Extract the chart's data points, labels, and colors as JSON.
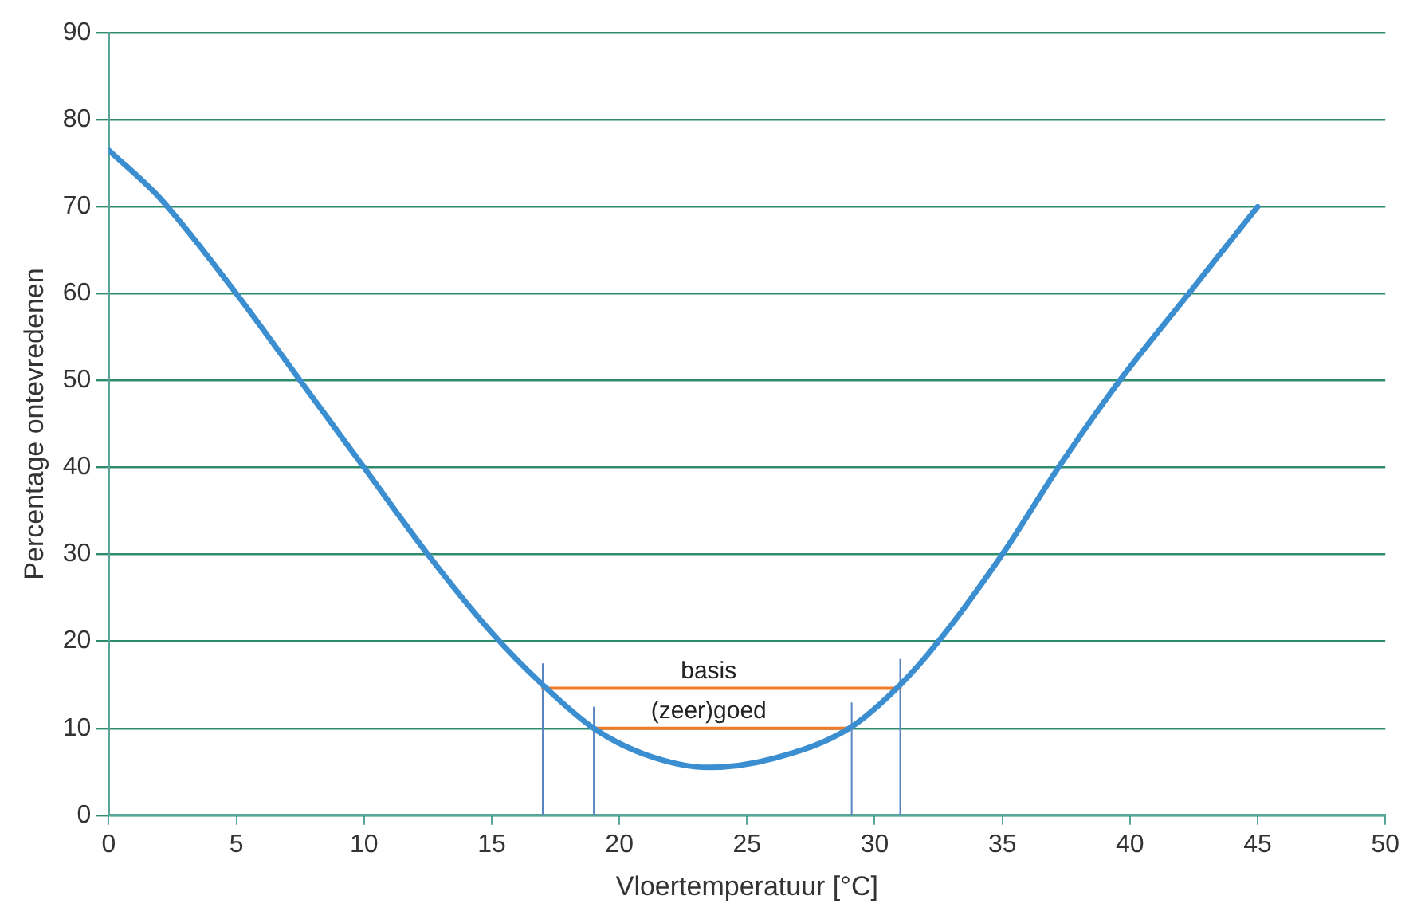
{
  "chart_data": {
    "type": "line",
    "xlabel": "Vloertemperatuur [°C]",
    "ylabel": "Percentage ontevredenen",
    "xlim": [
      0,
      50
    ],
    "xticks": [
      0,
      5,
      10,
      15,
      20,
      25,
      30,
      35,
      40,
      45,
      50
    ],
    "ylim": [
      0,
      90
    ],
    "yticks": [
      0,
      10,
      20,
      30,
      40,
      50,
      60,
      70,
      80,
      90
    ],
    "grid": "y",
    "legend": false,
    "marker": "none",
    "line_style": "solid",
    "series": [
      {
        "color": "#3b8fd1",
        "x": [
          0,
          2,
          5,
          7.5,
          10,
          12.5,
          15,
          17,
          19,
          21,
          23.5,
          26,
          29,
          31,
          32.5,
          35,
          37.2,
          39.6,
          42.3,
          45
        ],
        "values": [
          76.5,
          71,
          60,
          50,
          40,
          30,
          21,
          15,
          10,
          7,
          5.5,
          6.5,
          10,
          15,
          20,
          30,
          40,
          50,
          60,
          70
        ]
      },
      {
        "color": "#f07b28",
        "x": [
          17,
          31
        ],
        "values": [
          14.6,
          14.6
        ]
      },
      {
        "color": "#f07b28",
        "x": [
          19,
          29.1
        ],
        "values": [
          10,
          10
        ]
      },
      {
        "color": "#5a86c0",
        "x": [
          17,
          17
        ],
        "values": [
          0,
          17.4
        ]
      },
      {
        "color": "#5a86c0",
        "x": [
          19,
          19
        ],
        "values": [
          0,
          12.4
        ]
      },
      {
        "color": "#5a86c0",
        "x": [
          29.1,
          29.1
        ],
        "values": [
          0,
          12.9
        ]
      },
      {
        "color": "#5a86c0",
        "x": [
          31,
          31
        ],
        "values": [
          0,
          17.9
        ]
      }
    ],
    "annotations": [
      {
        "text": "basis",
        "x": 23.5,
        "y": 14.6
      },
      {
        "text": "(zeer)goed",
        "x": 23.5,
        "y": 10
      }
    ]
  }
}
